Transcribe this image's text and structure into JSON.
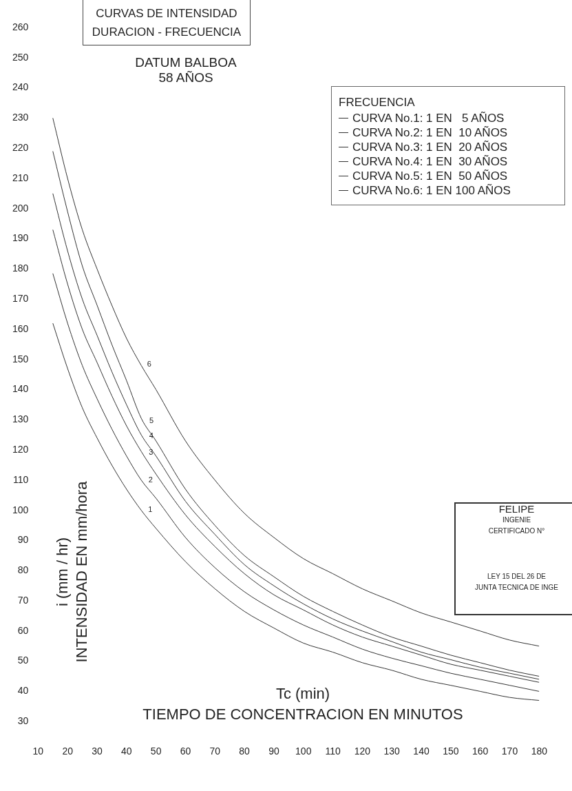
{
  "chart_data": {
    "type": "line",
    "title": "CURVAS DE INTENSIDAD\nDURACION - FRECUENCIA",
    "subtitle": "DATUM BALBOA\n58 AÑOS",
    "xlabel": "Tc (min)\nTIEMPO DE CONCENTRACION EN MINUTOS",
    "ylabel": "i (mm / hr)\nINTENSIDAD EN mm/hora",
    "legend_title": "FRECUENCIA",
    "legend": "top right",
    "x": [
      15,
      20,
      25,
      30,
      35,
      40,
      45,
      50,
      60,
      70,
      80,
      90,
      100,
      110,
      120,
      130,
      140,
      150,
      160,
      170,
      180
    ],
    "series": [
      {
        "name": "CURVA No.1: 1 EN   5 AÑOS",
        "color": "#333333",
        "values": [
          162,
          147,
          134,
          124,
          115,
          107,
          100,
          94,
          83,
          74,
          66.5,
          61,
          56,
          53,
          49.5,
          47,
          44,
          42,
          40,
          38,
          37
        ]
      },
      {
        "name": "CURVA No.2: 1 EN  10 AÑOS",
        "color": "#333333",
        "values": [
          178.5,
          162,
          148,
          137,
          127,
          118,
          110,
          104,
          91,
          81,
          73,
          67,
          62,
          58,
          54,
          51,
          48.5,
          46,
          44,
          42,
          40
        ]
      },
      {
        "name": "CURVA No.3: 1 EN  20 AÑOS",
        "color": "#333333",
        "values": [
          193,
          175,
          160,
          149,
          138,
          128,
          119.5,
          112,
          98.5,
          88,
          79,
          72,
          67,
          62,
          58,
          55,
          52,
          49,
          47,
          45,
          43
        ]
      },
      {
        "name": "CURVA No.4: 1 EN  30 AÑOS",
        "color": "#333333",
        "values": [
          205,
          186,
          170,
          158,
          146,
          135,
          125,
          118,
          103,
          92,
          82,
          75,
          69,
          64,
          60,
          56.5,
          53,
          50.5,
          48,
          46,
          44
        ]
      },
      {
        "name": "CURVA No.5: 1 EN  50 AÑOS",
        "color": "#333333",
        "values": [
          219,
          199,
          181,
          168,
          155,
          143,
          130.5,
          123,
          107,
          95,
          85,
          78,
          71.5,
          66.5,
          62,
          58,
          55,
          52,
          49.5,
          47,
          45
        ]
      },
      {
        "name": "CURVA No.6: 1 EN 100 AÑOS",
        "color": "#333333",
        "values": [
          230,
          210,
          193,
          180,
          168,
          157,
          148,
          140,
          123,
          110,
          99,
          91,
          84,
          79,
          74,
          70,
          66,
          63,
          60,
          57,
          55
        ]
      }
    ],
    "xlim": [
      10,
      180
    ],
    "ylim": [
      30,
      260
    ],
    "xticks": [
      10,
      20,
      30,
      40,
      50,
      60,
      70,
      80,
      90,
      100,
      110,
      120,
      130,
      140,
      150,
      160,
      170,
      180
    ],
    "yticks": [
      30,
      40,
      50,
      60,
      70,
      80,
      90,
      100,
      110,
      120,
      130,
      140,
      150,
      160,
      170,
      180,
      190,
      200,
      210,
      220,
      230,
      240,
      250,
      260
    ],
    "annotations": [
      {
        "text": "1",
        "x": 46.2,
        "y": 98.6
      },
      {
        "text": "2",
        "x": 46.3,
        "y": 108.4
      },
      {
        "text": "3",
        "x": 46.4,
        "y": 117.4
      },
      {
        "text": "4",
        "x": 46.5,
        "y": 122.9
      },
      {
        "text": "5",
        "x": 46.6,
        "y": 128.1
      },
      {
        "text": "6",
        "x": 45.8,
        "y": 146.7
      },
      "FELIPE",
      "INGENIE",
      "CERTIFICADO N°",
      "LEY 15 DEL 26 DE",
      "JUNTA TECNICA DE INGE"
    ]
  }
}
